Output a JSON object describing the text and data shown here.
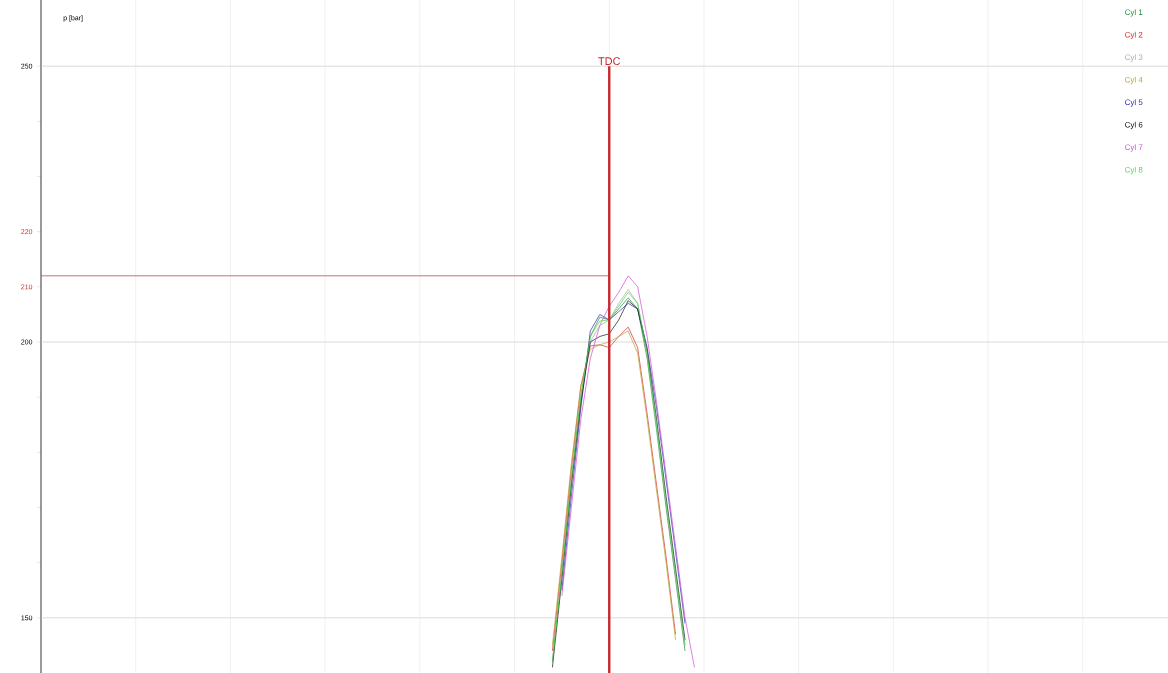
{
  "chart_data": {
    "type": "line",
    "ylabel": "p [bar]",
    "categories": [
      null,
      null,
      null,
      null,
      null,
      null,
      null,
      null,
      null,
      null,
      null,
      null,
      null,
      null,
      null,
      null,
      null,
      null,
      null,
      null,
      null,
      null,
      null,
      null,
      null,
      null,
      null,
      null,
      null,
      null,
      null,
      null,
      null,
      null,
      null,
      null,
      null,
      null,
      null,
      null,
      null,
      null,
      null,
      null,
      null,
      null,
      null,
      null,
      null,
      null,
      null,
      null,
      null,
      null,
      null,
      null,
      null,
      null,
      null,
      null,
      null,
      null,
      null,
      null,
      null,
      null,
      null,
      null,
      null,
      null,
      null,
      null,
      null,
      null,
      null,
      null,
      null,
      null,
      null,
      null,
      null,
      null,
      null,
      null,
      null,
      null,
      null,
      null,
      null,
      null,
      null,
      null,
      null,
      null,
      null,
      null,
      null,
      null,
      null,
      null,
      null,
      null,
      null,
      null,
      null,
      null,
      null,
      null,
      null,
      null,
      null,
      null,
      null,
      null,
      null,
      null,
      null,
      null,
      null,
      null
    ],
    "series": [
      {
        "name": "Cyl 1",
        "color": "#228b3a",
        "values": [
          null,
          null,
          null,
          null,
          null,
          null,
          null,
          null,
          null,
          null,
          null,
          null,
          null,
          null,
          null,
          null,
          null,
          null,
          null,
          null,
          null,
          null,
          null,
          null,
          null,
          null,
          null,
          null,
          null,
          null,
          null,
          null,
          null,
          null,
          null,
          null,
          null,
          null,
          null,
          null,
          null,
          null,
          null,
          null,
          null,
          null,
          null,
          null,
          null,
          null,
          null,
          null,
          null,
          null,
          142,
          158,
          175,
          190,
          201,
          204.5,
          204,
          206,
          208,
          206,
          197,
          184,
          170,
          157,
          144,
          null,
          null,
          null,
          null,
          null,
          null,
          null,
          null,
          null,
          null,
          null,
          null,
          null,
          null,
          null,
          null,
          null,
          null,
          null,
          null,
          null,
          null,
          null,
          null,
          null,
          null,
          null,
          null,
          null,
          null,
          null,
          null,
          null,
          null,
          null,
          null,
          null,
          null,
          null,
          null,
          null,
          null,
          null,
          null,
          null,
          null,
          null,
          null,
          null,
          null,
          null
        ]
      },
      {
        "name": "Cyl 2",
        "color": "#d42a2a",
        "values": [
          null,
          null,
          null,
          null,
          null,
          null,
          null,
          null,
          null,
          null,
          null,
          null,
          null,
          null,
          null,
          null,
          null,
          null,
          null,
          null,
          null,
          null,
          null,
          null,
          null,
          null,
          null,
          null,
          null,
          null,
          null,
          null,
          null,
          null,
          null,
          null,
          null,
          null,
          null,
          null,
          null,
          null,
          null,
          null,
          null,
          null,
          null,
          null,
          null,
          null,
          null,
          null,
          null,
          null,
          144,
          160,
          177,
          192,
          199.3,
          199.5,
          199,
          201,
          202.7,
          199,
          187,
          174,
          161,
          147,
          null,
          null,
          null,
          null,
          null,
          null,
          null,
          null,
          null,
          null,
          null,
          null,
          null,
          null,
          null,
          null,
          null,
          null,
          null,
          null,
          null,
          null,
          null,
          null,
          null,
          null,
          null,
          null,
          null,
          null,
          null,
          null,
          null,
          null,
          null,
          null,
          null,
          null,
          null,
          null,
          null,
          null,
          null,
          null,
          null,
          null,
          null,
          null,
          null,
          null,
          null,
          null
        ]
      },
      {
        "name": "Cyl 3",
        "color": "#a8a8a8",
        "values": [
          null,
          null,
          null,
          null,
          null,
          null,
          null,
          null,
          null,
          null,
          null,
          null,
          null,
          null,
          null,
          null,
          null,
          null,
          null,
          null,
          null,
          null,
          null,
          null,
          null,
          null,
          null,
          null,
          null,
          null,
          null,
          null,
          null,
          null,
          null,
          null,
          null,
          null,
          null,
          null,
          null,
          null,
          null,
          null,
          null,
          null,
          null,
          null,
          null,
          null,
          null,
          null,
          null,
          null,
          142,
          158,
          175,
          190,
          200,
          203,
          204,
          207,
          209.5,
          207,
          198,
          185,
          171,
          158,
          145,
          null,
          null,
          null,
          null,
          null,
          null,
          null,
          null,
          null,
          null,
          null,
          null,
          null,
          null,
          null,
          null,
          null,
          null,
          null,
          null,
          null,
          null,
          null,
          null,
          null,
          null,
          null,
          null,
          null,
          null,
          null,
          null,
          null,
          null,
          null,
          null,
          null,
          null,
          null,
          null,
          null,
          null,
          null,
          null,
          null,
          null,
          null,
          null,
          null,
          null,
          null
        ]
      },
      {
        "name": "Cyl 4",
        "color": "#b8a030",
        "values": [
          null,
          null,
          null,
          null,
          null,
          null,
          null,
          null,
          null,
          null,
          null,
          null,
          null,
          null,
          null,
          null,
          null,
          null,
          null,
          null,
          null,
          null,
          null,
          null,
          null,
          null,
          null,
          null,
          null,
          null,
          null,
          null,
          null,
          null,
          null,
          null,
          null,
          null,
          null,
          null,
          null,
          null,
          null,
          null,
          null,
          null,
          null,
          null,
          null,
          null,
          null,
          null,
          null,
          null,
          145,
          161,
          178,
          192,
          198.7,
          199.5,
          200,
          201,
          202,
          198,
          186,
          173,
          160,
          146,
          null,
          null,
          null,
          null,
          null,
          null,
          null,
          null,
          null,
          null,
          null,
          null,
          null,
          null,
          null,
          null,
          null,
          null,
          null,
          null,
          null,
          null,
          null,
          null,
          null,
          null,
          null,
          null,
          null,
          null,
          null,
          null,
          null,
          null,
          null,
          null,
          null,
          null,
          null,
          null,
          null,
          null,
          null,
          null,
          null,
          null,
          null,
          null,
          null,
          null,
          null,
          null
        ]
      },
      {
        "name": "Cyl 5",
        "color": "#2a2aa8",
        "values": [
          null,
          null,
          null,
          null,
          null,
          null,
          null,
          null,
          null,
          null,
          null,
          null,
          null,
          null,
          null,
          null,
          null,
          null,
          null,
          null,
          null,
          null,
          null,
          null,
          null,
          null,
          null,
          null,
          null,
          null,
          null,
          null,
          null,
          null,
          null,
          null,
          null,
          null,
          null,
          null,
          null,
          null,
          null,
          null,
          null,
          null,
          null,
          null,
          null,
          null,
          null,
          null,
          null,
          null,
          null,
          155,
          172,
          188,
          202,
          205,
          204,
          205.5,
          207,
          206,
          199,
          188,
          175,
          162,
          149,
          null,
          null,
          null,
          null,
          null,
          null,
          null,
          null,
          null,
          null,
          null,
          null,
          null,
          null,
          null,
          null,
          null,
          null,
          null,
          null,
          null,
          null,
          null,
          null,
          null,
          null,
          null,
          null,
          null,
          null,
          null,
          null,
          null,
          null,
          null,
          null,
          null,
          null,
          null,
          null,
          null,
          null,
          null,
          null,
          null,
          null,
          null,
          null,
          null,
          null,
          null
        ]
      },
      {
        "name": "Cyl 6",
        "color": "#141414",
        "values": [
          null,
          null,
          null,
          null,
          null,
          null,
          null,
          null,
          null,
          null,
          null,
          null,
          null,
          null,
          null,
          null,
          null,
          null,
          null,
          null,
          null,
          null,
          null,
          null,
          null,
          null,
          null,
          null,
          null,
          null,
          null,
          null,
          null,
          null,
          null,
          null,
          null,
          null,
          null,
          null,
          null,
          null,
          null,
          null,
          null,
          null,
          null,
          null,
          null,
          null,
          null,
          null,
          null,
          null,
          141,
          157,
          174,
          189,
          200,
          201,
          201.5,
          204,
          207.5,
          206,
          198.5,
          186,
          172,
          159,
          146,
          null,
          null,
          null,
          null,
          null,
          null,
          null,
          null,
          null,
          null,
          null,
          null,
          null,
          null,
          null,
          null,
          null,
          null,
          null,
          null,
          null,
          null,
          null,
          null,
          null,
          null,
          null,
          null,
          null,
          null,
          null,
          null,
          null,
          null,
          null,
          null,
          null,
          null,
          null,
          null,
          null,
          null,
          null,
          null,
          null,
          null,
          null,
          null,
          null,
          null,
          null
        ]
      },
      {
        "name": "Cyl 7",
        "color": "#d048d8",
        "values": [
          null,
          null,
          null,
          null,
          null,
          null,
          null,
          null,
          null,
          null,
          null,
          null,
          null,
          null,
          null,
          null,
          null,
          null,
          null,
          null,
          null,
          null,
          null,
          null,
          null,
          null,
          null,
          null,
          null,
          null,
          null,
          null,
          null,
          null,
          null,
          null,
          null,
          null,
          null,
          null,
          null,
          null,
          null,
          null,
          null,
          null,
          null,
          null,
          null,
          null,
          null,
          null,
          null,
          null,
          null,
          154,
          170,
          186,
          197,
          203,
          206.5,
          209,
          212,
          210,
          201,
          189,
          176,
          163,
          150,
          141,
          null,
          null,
          null,
          null,
          null,
          null,
          null,
          null,
          null,
          null,
          null,
          null,
          null,
          null,
          null,
          null,
          null,
          null,
          null,
          null,
          null,
          null,
          null,
          null,
          null,
          null,
          null,
          null,
          null,
          null,
          null,
          null,
          null,
          null,
          null,
          null,
          null,
          null,
          null,
          null,
          null,
          null,
          null,
          null,
          null,
          null,
          null,
          null,
          null,
          null
        ]
      },
      {
        "name": "Cyl 8",
        "color": "#48d848",
        "values": [
          null,
          null,
          null,
          null,
          null,
          null,
          null,
          null,
          null,
          null,
          null,
          null,
          null,
          null,
          null,
          null,
          null,
          null,
          null,
          null,
          null,
          null,
          null,
          null,
          null,
          null,
          null,
          null,
          null,
          null,
          null,
          null,
          null,
          null,
          null,
          null,
          null,
          null,
          null,
          null,
          null,
          null,
          null,
          null,
          null,
          null,
          null,
          null,
          null,
          null,
          null,
          null,
          null,
          null,
          142,
          158,
          175,
          190,
          201,
          203.8,
          204,
          206.5,
          209,
          207,
          198,
          185,
          171,
          158,
          145,
          null,
          null,
          null,
          null,
          null,
          null,
          null,
          null,
          null,
          null,
          null,
          null,
          null,
          null,
          null,
          null,
          null,
          null,
          null,
          null,
          null,
          null,
          null,
          null,
          null,
          null,
          null,
          null,
          null,
          null,
          null,
          null,
          null,
          null,
          null,
          null,
          null,
          null,
          null,
          null,
          null,
          null,
          null,
          null,
          null,
          null,
          null,
          null,
          null,
          null,
          null
        ]
      }
    ],
    "ylim": [
      140,
      262
    ],
    "yticks": [
      150,
      {
        "value": 160,
        "label": null
      },
      {
        "value": 170,
        "label": null
      },
      {
        "value": 180,
        "label": null
      },
      {
        "value": 190,
        "label": null
      },
      200,
      {
        "value": 210,
        "label": "210"
      },
      {
        "value": 220,
        "label": "220"
      },
      {
        "value": 230,
        "label": null
      },
      {
        "value": 240,
        "label": null
      },
      250
    ],
    "annotations": [
      "TDC"
    ],
    "ref_lines": [
      {
        "axis": "y",
        "value": 212,
        "color": "#c8282d"
      }
    ],
    "grid": true,
    "legend": "top right",
    "tick_labels": "y"
  }
}
